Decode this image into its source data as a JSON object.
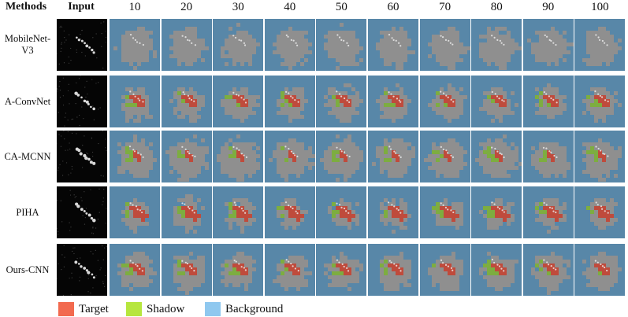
{
  "header": {
    "methods_label": "Methods",
    "input_label": "Input",
    "columns": [
      "10",
      "20",
      "30",
      "40",
      "50",
      "60",
      "70",
      "80",
      "90",
      "100"
    ]
  },
  "rows": [
    {
      "label": "MobileNet-V3",
      "label_line1": "MobileNet-",
      "label_line2": "V3"
    },
    {
      "label": "A-ConvNet",
      "label_line1": "A-ConvNet",
      "label_line2": ""
    },
    {
      "label": "CA-MCNN",
      "label_line1": "CA-MCNN",
      "label_line2": ""
    },
    {
      "label": "PIHA",
      "label_line1": "PIHA",
      "label_line2": ""
    },
    {
      "label": "Ours-CNN",
      "label_line1": "Ours-CNN",
      "label_line2": ""
    }
  ],
  "legend": [
    {
      "label": "Target",
      "color": "#f26a4f"
    },
    {
      "label": "Shadow",
      "color": "#b6e63e"
    },
    {
      "label": "Background",
      "color": "#8fc8ef"
    }
  ],
  "colors": {
    "image_gray": "#8f8f8f",
    "background_overlay": "#4f86ad",
    "target_overlay": "#c8402e",
    "shadow_overlay": "#7ab332",
    "input_background": "#050505"
  }
}
